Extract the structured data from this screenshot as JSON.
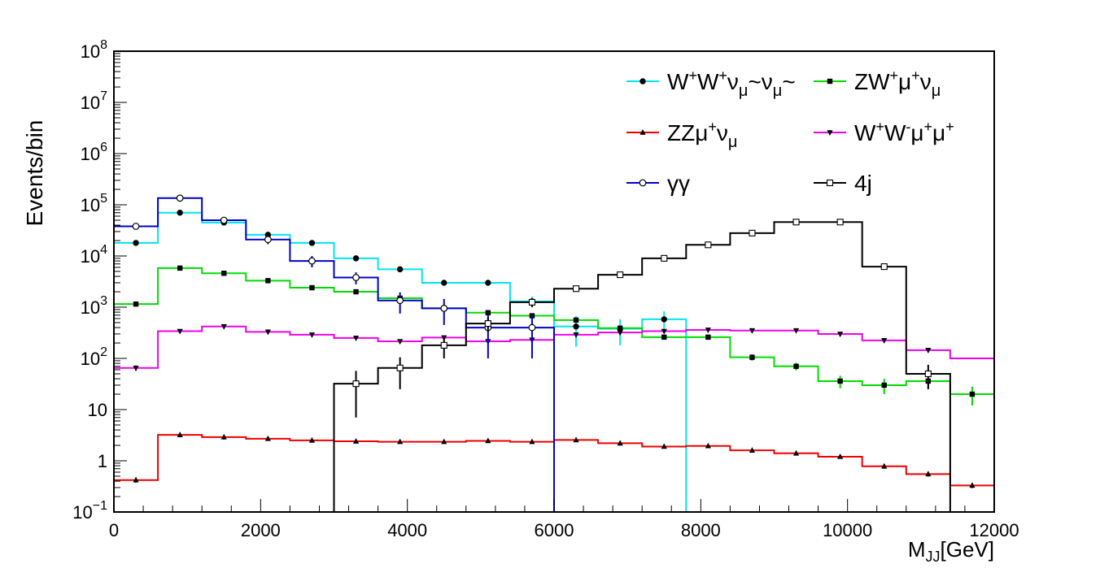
{
  "chart_data": {
    "type": "step",
    "title": "",
    "ylabel": "Events/bin",
    "xlabel": {
      "base": "M",
      "sub": "JJ",
      "rest": "[GeV]"
    },
    "xlim": [
      0,
      12000
    ],
    "ylim": [
      0.1,
      100000000
    ],
    "yscale": "log",
    "bin_edges": [
      0,
      600,
      1200,
      1800,
      2400,
      3000,
      3600,
      4200,
      4800,
      5400,
      6000,
      6600,
      7200,
      7800,
      8400,
      9000,
      9600,
      10200,
      10800,
      11400,
      12000
    ],
    "x_ticks": [
      {
        "value": 0,
        "label": "0"
      },
      {
        "value": 2000,
        "label": "2000"
      },
      {
        "value": 4000,
        "label": "4000"
      },
      {
        "value": 6000,
        "label": "6000"
      },
      {
        "value": 8000,
        "label": "8000"
      },
      {
        "value": 10000,
        "label": "10000"
      },
      {
        "value": 12000,
        "label": "12000"
      }
    ],
    "y_ticks": [
      {
        "value": 0.1,
        "base": "10",
        "exp": "−1"
      },
      {
        "value": 1,
        "base": "1",
        "exp": ""
      },
      {
        "value": 10,
        "base": "10",
        "exp": ""
      },
      {
        "value": 100,
        "base": "10",
        "exp": "2"
      },
      {
        "value": 1000,
        "base": "10",
        "exp": "3"
      },
      {
        "value": 10000,
        "base": "10",
        "exp": "4"
      },
      {
        "value": 100000,
        "base": "10",
        "exp": "5"
      },
      {
        "value": 1000000,
        "base": "10",
        "exp": "6"
      },
      {
        "value": 10000000,
        "base": "10",
        "exp": "7"
      },
      {
        "value": 100000000,
        "base": "10",
        "exp": "8"
      }
    ],
    "series": [
      {
        "name": "W+W+νμ~νμ~",
        "color": "#00e5ee",
        "marker": "filled-circle",
        "values": [
          18000,
          70000,
          45000,
          26000,
          18000,
          9000,
          5500,
          3000,
          3000,
          1300,
          420,
          380,
          580,
          0,
          0,
          0,
          0,
          0,
          0,
          0
        ],
        "errors": [
          1200,
          3000,
          2000,
          1500,
          1200,
          800,
          600,
          400,
          400,
          300,
          250,
          200,
          250,
          0,
          0,
          0,
          0,
          0,
          0,
          0
        ],
        "marked": [
          true,
          true,
          true,
          true,
          true,
          true,
          true,
          true,
          true,
          true,
          true,
          true,
          true,
          false,
          false,
          false,
          false,
          false,
          false,
          false
        ]
      },
      {
        "name": "ZW+μ+νμ",
        "color": "#00dd00",
        "marker": "filled-square",
        "values": [
          1150,
          5800,
          4600,
          3300,
          2400,
          2000,
          1500,
          950,
          780,
          680,
          560,
          390,
          260,
          260,
          105,
          70,
          36,
          30,
          36,
          20
        ],
        "errors": [
          100,
          400,
          300,
          250,
          200,
          150,
          120,
          100,
          80,
          70,
          60,
          40,
          30,
          30,
          15,
          12,
          10,
          10,
          10,
          8
        ],
        "marked": [
          true,
          true,
          true,
          true,
          true,
          true,
          true,
          true,
          true,
          true,
          true,
          true,
          true,
          true,
          true,
          true,
          true,
          true,
          true,
          true
        ]
      },
      {
        "name": "ZZμ+νμ",
        "color": "#ee0000",
        "marker": "filled-triangle-up",
        "values": [
          0.42,
          3.2,
          2.9,
          2.7,
          2.5,
          2.4,
          2.35,
          2.35,
          2.45,
          2.35,
          2.55,
          2.2,
          1.9,
          1.95,
          1.6,
          1.4,
          1.2,
          0.78,
          0.55,
          0.33
        ],
        "errors": [
          0.05,
          0.3,
          0.3,
          0.2,
          0.2,
          0.2,
          0.2,
          0.2,
          0.2,
          0.2,
          0.2,
          0.2,
          0.15,
          0.15,
          0.12,
          0.1,
          0.1,
          0.08,
          0.06,
          0.04
        ],
        "marked": [
          true,
          true,
          true,
          true,
          true,
          true,
          true,
          true,
          true,
          true,
          true,
          true,
          true,
          true,
          true,
          true,
          true,
          true,
          true,
          true
        ]
      },
      {
        "name": "W+W-μ+μ+",
        "color": "#ee00ee",
        "marker": "filled-triangle-down",
        "values": [
          65,
          340,
          420,
          330,
          290,
          250,
          215,
          255,
          215,
          230,
          290,
          320,
          340,
          360,
          350,
          350,
          300,
          225,
          145,
          100
        ],
        "errors": [
          8,
          30,
          35,
          30,
          25,
          22,
          20,
          22,
          20,
          22,
          25,
          28,
          30,
          30,
          30,
          30,
          28,
          22,
          15,
          10
        ],
        "marked": [
          true,
          true,
          true,
          true,
          true,
          true,
          true,
          true,
          true,
          true,
          true,
          true,
          true,
          true,
          true,
          true,
          true,
          true,
          true,
          false
        ]
      },
      {
        "name": "γγ",
        "color": "#0000cc",
        "marker": "open-circle",
        "values": [
          38000,
          135000,
          50000,
          21000,
          8000,
          3800,
          1350,
          950,
          400,
          400,
          0,
          0,
          0,
          0,
          0,
          0,
          0,
          0,
          0,
          0
        ],
        "errors": [
          5000,
          15000,
          7000,
          4000,
          2000,
          1000,
          600,
          500,
          300,
          300,
          0,
          0,
          0,
          0,
          0,
          0,
          0,
          0,
          0,
          0
        ],
        "marked": [
          true,
          true,
          true,
          true,
          true,
          true,
          true,
          true,
          true,
          true,
          false,
          false,
          false,
          false,
          false,
          false,
          false,
          false,
          false,
          false
        ]
      },
      {
        "name": "4j",
        "color": "#000000",
        "marker": "open-square",
        "values": [
          0,
          0,
          0,
          0,
          0,
          32,
          65,
          180,
          480,
          1250,
          2300,
          4300,
          9000,
          16500,
          28000,
          46000,
          46000,
          6200,
          50,
          0
        ],
        "errors": [
          0,
          0,
          0,
          0,
          0,
          25,
          40,
          80,
          150,
          250,
          300,
          400,
          600,
          900,
          1200,
          1500,
          1500,
          600,
          25,
          0
        ],
        "marked": [
          false,
          false,
          false,
          false,
          false,
          true,
          true,
          true,
          true,
          true,
          true,
          true,
          true,
          true,
          true,
          true,
          true,
          true,
          true,
          false
        ]
      }
    ],
    "legend": {
      "placement": "top-right",
      "entries": [
        {
          "parts": [
            [
              "W",
              ""
            ],
            [
              "",
              "+"
            ],
            [
              "W",
              ""
            ],
            [
              "",
              "+"
            ],
            [
              "ν",
              ""
            ],
            [
              "μ",
              "sub"
            ],
            [
              "~ν",
              ""
            ],
            [
              "μ",
              "sub"
            ],
            [
              "~",
              ""
            ]
          ]
        },
        {
          "parts": [
            [
              "ZW",
              ""
            ],
            [
              "+",
              "sup"
            ],
            [
              "μ",
              ""
            ],
            [
              "+",
              "sup"
            ],
            [
              "ν",
              ""
            ],
            [
              "μ",
              "sub"
            ]
          ]
        },
        {
          "parts": [
            [
              "ZZμ",
              ""
            ],
            [
              "+",
              "sup"
            ],
            [
              "ν",
              ""
            ],
            [
              "μ",
              "sub"
            ]
          ]
        },
        {
          "parts": [
            [
              "W",
              ""
            ],
            [
              "+",
              "sup"
            ],
            [
              "W",
              ""
            ],
            [
              "-",
              "sup"
            ],
            [
              "μ",
              ""
            ],
            [
              "+",
              "sup"
            ],
            [
              "μ",
              ""
            ],
            [
              "+",
              "sup"
            ]
          ]
        },
        {
          "parts": [
            [
              "γγ",
              ""
            ]
          ]
        },
        {
          "parts": [
            [
              "4j",
              ""
            ]
          ]
        }
      ]
    }
  }
}
